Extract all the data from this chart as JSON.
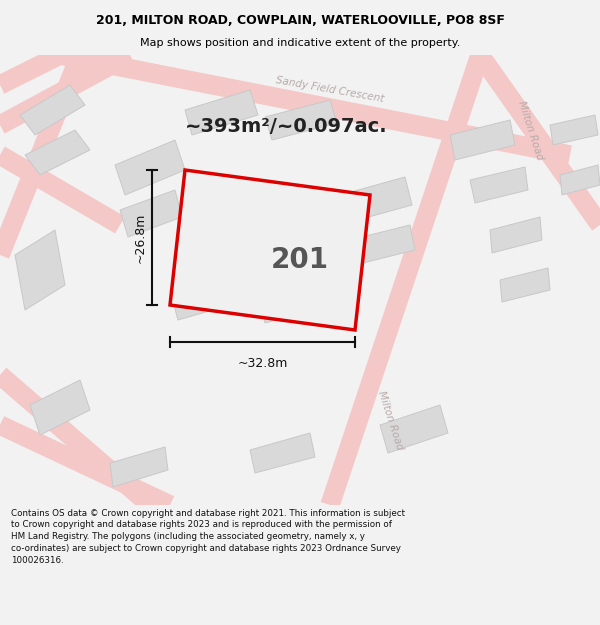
{
  "title_line1": "201, MILTON ROAD, COWPLAIN, WATERLOOVILLE, PO8 8SF",
  "title_line2": "Map shows position and indicative extent of the property.",
  "area_text": "~393m²/~0.097ac.",
  "label_201": "201",
  "dim_width": "~32.8m",
  "dim_height": "~26.8m",
  "footer_text": "Contains OS data © Crown copyright and database right 2021. This information is subject\nto Crown copyright and database rights 2023 and is reproduced with the permission of\nHM Land Registry. The polygons (including the associated geometry, namely x, y\nco-ordinates) are subject to Crown copyright and database rights 2023 Ordnance Survey\n100026316.",
  "bg_color": "#f2f2f2",
  "map_bg": "#ebebeb",
  "road_color": "#f5c8c8",
  "block_color": "#d9d9d9",
  "block_edge": "#c8c8c8",
  "road_label_color": "#b8aaaa",
  "highlight_color": "#dd0000",
  "prop_fill": "#f0f0f0",
  "title_color": "#000000",
  "footer_color": "#111111",
  "dim_color": "#111111"
}
